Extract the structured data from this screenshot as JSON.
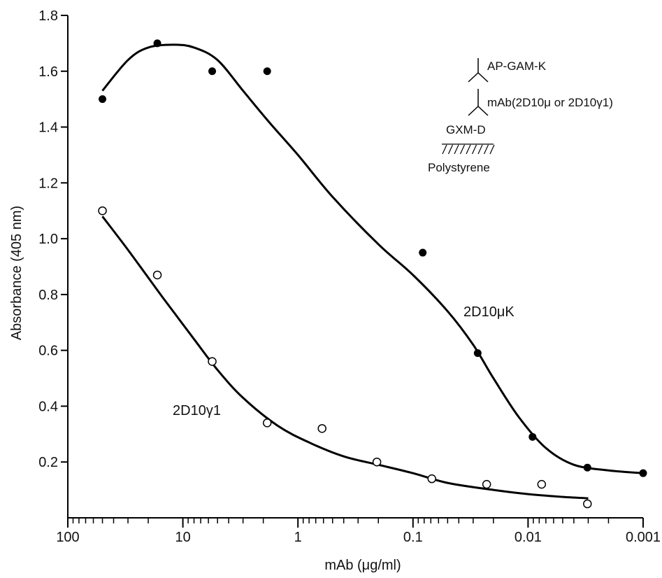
{
  "chart_data": {
    "type": "scatter",
    "xlabel": "mAb (μg/ml)",
    "ylabel": "Absorbance (405 nm)",
    "x_scale": "log",
    "x_reversed": true,
    "xlim": [
      100,
      0.001
    ],
    "ylim": [
      0,
      1.8
    ],
    "x_ticks": [
      {
        "value": 100,
        "label": "100"
      },
      {
        "value": 10,
        "label": "10"
      },
      {
        "value": 1,
        "label": "1"
      },
      {
        "value": 0.1,
        "label": "0.1"
      },
      {
        "value": 0.01,
        "label": "0.01"
      },
      {
        "value": 0.001,
        "label": "0.001"
      }
    ],
    "y_ticks": [
      {
        "value": 0.2,
        "label": "0.2"
      },
      {
        "value": 0.4,
        "label": "0.4"
      },
      {
        "value": 0.6,
        "label": "0.6"
      },
      {
        "value": 0.8,
        "label": "0.8"
      },
      {
        "value": 1.0,
        "label": "1.0"
      },
      {
        "value": 1.2,
        "label": "1.2"
      },
      {
        "value": 1.4,
        "label": "1.4"
      },
      {
        "value": 1.6,
        "label": "1.6"
      },
      {
        "value": 1.8,
        "label": "1.8"
      }
    ],
    "grid": false,
    "series": [
      {
        "name": "2D10μK",
        "marker": "filled-circle",
        "color": "#000000",
        "points": [
          {
            "x": 50,
            "y": 1.5
          },
          {
            "x": 16.67,
            "y": 1.7
          },
          {
            "x": 5.56,
            "y": 1.6
          },
          {
            "x": 1.85,
            "y": 1.6
          },
          {
            "x": 0.0823,
            "y": 0.95
          },
          {
            "x": 0.0274,
            "y": 0.59
          },
          {
            "x": 0.00914,
            "y": 0.29
          },
          {
            "x": 0.00305,
            "y": 0.18
          },
          {
            "x": 0.001,
            "y": 0.16
          }
        ],
        "curve": [
          {
            "x": 50,
            "y": 1.53
          },
          {
            "x": 30,
            "y": 1.64
          },
          {
            "x": 20,
            "y": 1.685
          },
          {
            "x": 12,
            "y": 1.695
          },
          {
            "x": 8,
            "y": 1.685
          },
          {
            "x": 5,
            "y": 1.64
          },
          {
            "x": 3,
            "y": 1.53
          },
          {
            "x": 1.8,
            "y": 1.42
          },
          {
            "x": 1,
            "y": 1.3
          },
          {
            "x": 0.5,
            "y": 1.15
          },
          {
            "x": 0.2,
            "y": 0.98
          },
          {
            "x": 0.1,
            "y": 0.87
          },
          {
            "x": 0.05,
            "y": 0.74
          },
          {
            "x": 0.03,
            "y": 0.62
          },
          {
            "x": 0.02,
            "y": 0.5
          },
          {
            "x": 0.012,
            "y": 0.36
          },
          {
            "x": 0.007,
            "y": 0.25
          },
          {
            "x": 0.004,
            "y": 0.19
          },
          {
            "x": 0.002,
            "y": 0.17
          },
          {
            "x": 0.001,
            "y": 0.16
          }
        ],
        "label": "2D10μK"
      },
      {
        "name": "2D10γ1",
        "marker": "open-circle",
        "color": "#000000",
        "points": [
          {
            "x": 50,
            "y": 1.1
          },
          {
            "x": 16.67,
            "y": 0.87
          },
          {
            "x": 5.56,
            "y": 0.56
          },
          {
            "x": 1.85,
            "y": 0.34
          },
          {
            "x": 0.617,
            "y": 0.32
          },
          {
            "x": 0.206,
            "y": 0.2
          },
          {
            "x": 0.0686,
            "y": 0.14
          },
          {
            "x": 0.0229,
            "y": 0.12
          },
          {
            "x": 0.00762,
            "y": 0.12
          },
          {
            "x": 0.00305,
            "y": 0.05
          }
        ],
        "curve": [
          {
            "x": 50,
            "y": 1.08
          },
          {
            "x": 30,
            "y": 0.96
          },
          {
            "x": 15,
            "y": 0.79
          },
          {
            "x": 8,
            "y": 0.64
          },
          {
            "x": 5,
            "y": 0.53
          },
          {
            "x": 3,
            "y": 0.43
          },
          {
            "x": 1.5,
            "y": 0.33
          },
          {
            "x": 0.8,
            "y": 0.27
          },
          {
            "x": 0.4,
            "y": 0.22
          },
          {
            "x": 0.2,
            "y": 0.19
          },
          {
            "x": 0.1,
            "y": 0.16
          },
          {
            "x": 0.05,
            "y": 0.125
          },
          {
            "x": 0.02,
            "y": 0.1
          },
          {
            "x": 0.01,
            "y": 0.085
          },
          {
            "x": 0.005,
            "y": 0.075
          },
          {
            "x": 0.003,
            "y": 0.07
          }
        ],
        "label": "2D10γ1"
      }
    ],
    "inset": {
      "top_label": "AP-GAM-K",
      "middle_label": "mAb(2D10μ or 2D10γ1)",
      "bottom_label": "GXM-D",
      "surface_label": "Polystyrene"
    }
  }
}
